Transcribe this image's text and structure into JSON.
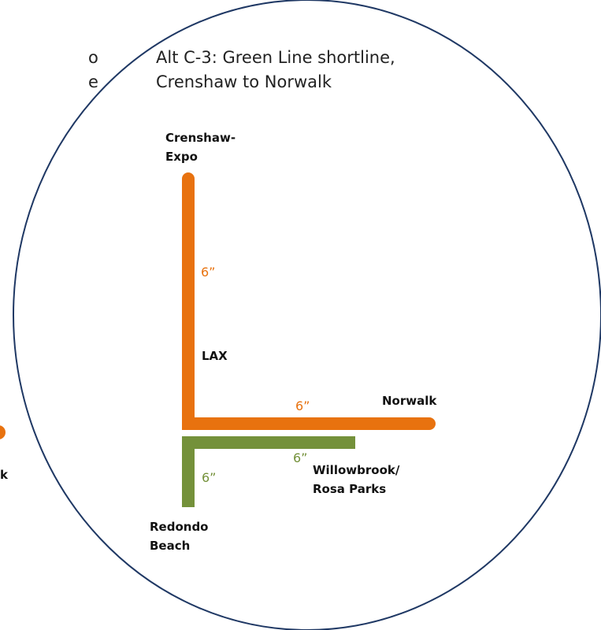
{
  "colors": {
    "orange_line": "#E8720F",
    "green_line": "#74913A",
    "circle_stroke": "#1F3864",
    "text": "#111111"
  },
  "left_partial": {
    "top_line_fragment": "o",
    "second_line_fragment": "e",
    "bottom_label_fragment": "k"
  },
  "title": {
    "line1": "Alt C-3: Green Line shortline,",
    "line2": "Crenshaw to Norwalk"
  },
  "stations": {
    "crenshaw_line1": "Crenshaw-",
    "crenshaw_line2": "Expo",
    "lax": "LAX",
    "norwalk": "Norwalk",
    "willowbrook_line1": "Willowbrook/",
    "willowbrook_line2": "Rosa Parks",
    "redondo_line1": "Redondo",
    "redondo_line2": "Beach"
  },
  "frequencies": {
    "orange_vertical": "6”",
    "orange_horizontal": "6”",
    "green_horizontal": "6”",
    "green_vertical": "6”"
  }
}
